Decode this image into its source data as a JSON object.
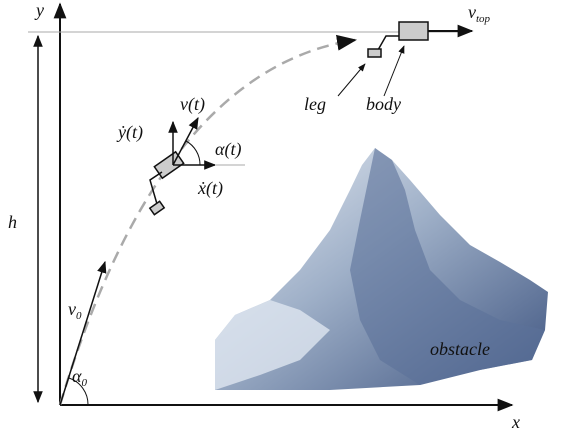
{
  "axes": {
    "x": "x",
    "y": "y"
  },
  "labels": {
    "h": "h",
    "v_top": {
      "base": "v",
      "sub": "top"
    },
    "leg": "leg",
    "body": "body",
    "y_dot": "ẏ(t)",
    "v_t": "v(t)",
    "alpha_t": "α(t)",
    "x_dot": "ẋ(t)",
    "v_0": {
      "base": "v",
      "sub": "0"
    },
    "alpha_0": {
      "base": "α",
      "sub": "0"
    },
    "obstacle": "obstacle"
  }
}
